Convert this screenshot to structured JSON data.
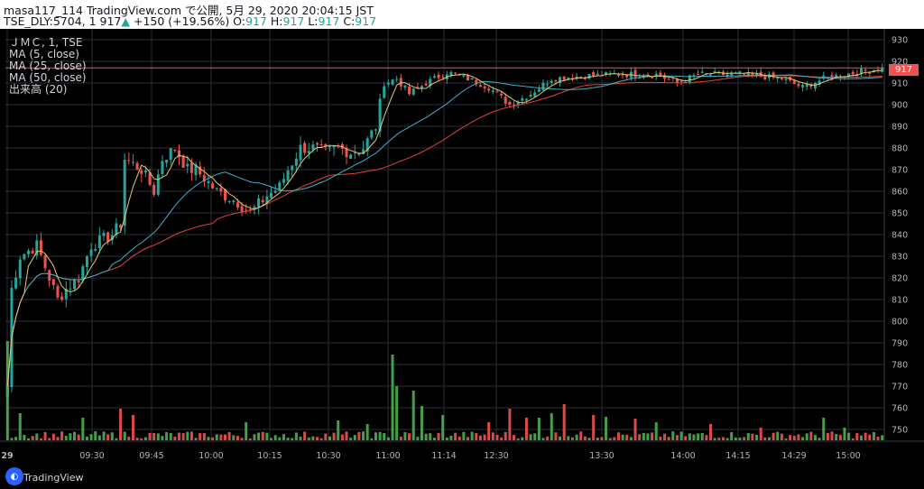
{
  "header": {
    "line1": "masa117_114 TradingView.com で公開, 5月 29, 2020 20:04:15 JST",
    "symbol": "TSE_DLY:5704",
    "pre": ", 1 917",
    "arrow": "▲",
    "change": "+150 (+19.56%)",
    "o_label": " O:",
    "o_val": "917",
    "h_label": " H:",
    "h_val": "917",
    "l_label": " L:",
    "l_val": "917",
    "c_label": " C:",
    "c_val": "917"
  },
  "legend": {
    "title": "ＪＭＣ, 1, TSE",
    "ma5": "MA (5, close)",
    "ma25": "MA (25, close)",
    "ma50": "MA (50, close)",
    "volume": "出来高 (20)"
  },
  "price_tag": "917",
  "branding": "TradingView",
  "colors": {
    "up": "#26a69a",
    "candle_up": "#26a69a",
    "candle_down": "#ef5350",
    "vol_up": "#4caf50",
    "vol_down": "#ef5350",
    "ma5": "#e8c86a",
    "ma25": "#3fb0c9",
    "ma50": "#e0453a",
    "grid": "#2a2e39",
    "text": "#b2b5be"
  },
  "chart_data": {
    "type": "candlestick",
    "ylim": [
      745,
      935
    ],
    "y_ticks": [
      "750",
      "760",
      "770",
      "780",
      "790",
      "800",
      "810",
      "820",
      "830",
      "840",
      "850",
      "860",
      "870",
      "880",
      "890",
      "900",
      "910",
      "920",
      "930"
    ],
    "x_ticks": [
      "29",
      "09:30",
      "09:45",
      "10:00",
      "10:15",
      "10:30",
      "11:00",
      "11:14",
      "12:30",
      "13:30",
      "14:00",
      "14:15",
      "14:29",
      "15:00"
    ],
    "bar_count": 210,
    "last_price": 917,
    "close_path": [
      [
        0,
        770
      ],
      [
        1,
        815
      ],
      [
        3,
        830
      ],
      [
        7,
        835
      ],
      [
        10,
        820
      ],
      [
        12,
        810
      ],
      [
        14,
        815
      ],
      [
        17,
        820
      ],
      [
        20,
        835
      ],
      [
        25,
        840
      ],
      [
        27,
        845
      ],
      [
        28,
        875
      ],
      [
        32,
        870
      ],
      [
        35,
        860
      ],
      [
        37,
        875
      ],
      [
        40,
        880
      ],
      [
        43,
        870
      ],
      [
        45,
        870
      ],
      [
        50,
        860
      ],
      [
        55,
        855
      ],
      [
        58,
        850
      ],
      [
        62,
        858
      ],
      [
        65,
        862
      ],
      [
        67,
        870
      ],
      [
        70,
        880
      ],
      [
        73,
        880
      ],
      [
        76,
        878
      ],
      [
        79,
        880
      ],
      [
        82,
        878
      ],
      [
        85,
        880
      ],
      [
        88,
        890
      ],
      [
        90,
        910
      ],
      [
        93,
        912
      ],
      [
        96,
        905
      ],
      [
        100,
        910
      ],
      [
        105,
        915
      ],
      [
        110,
        912
      ],
      [
        115,
        908
      ],
      [
        120,
        900
      ],
      [
        125,
        905
      ],
      [
        130,
        912
      ],
      [
        135,
        913
      ],
      [
        145,
        914
      ],
      [
        155,
        914
      ],
      [
        160,
        910
      ],
      [
        165,
        914
      ],
      [
        175,
        914
      ],
      [
        185,
        912
      ],
      [
        190,
        908
      ],
      [
        195,
        912
      ],
      [
        200,
        914
      ],
      [
        209,
        917
      ]
    ]
  }
}
